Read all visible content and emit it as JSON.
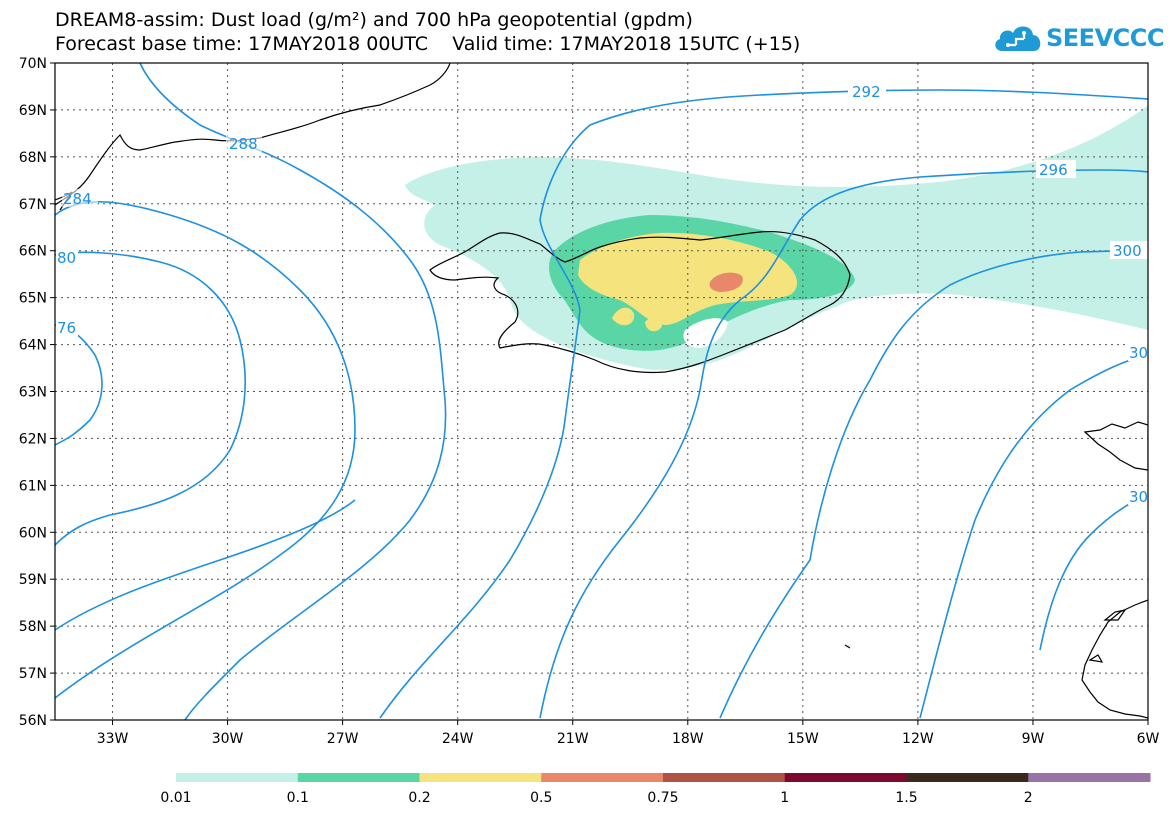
{
  "title": {
    "line1": "DREAM8-assim: Dust load (g/m²) and 700 hPa geopotential (gpdm)",
    "line2": "Forecast base time: 17MAY2018 00UTC    Valid time: 17MAY2018 15UTC (+15)"
  },
  "logo": {
    "text": "SEEVCCC",
    "icon": "cloud-icon",
    "color": "#1e9bd7"
  },
  "map": {
    "lat_ticks": [
      "70N",
      "69N",
      "68N",
      "67N",
      "66N",
      "65N",
      "64N",
      "63N",
      "62N",
      "61N",
      "60N",
      "59N",
      "58N",
      "57N",
      "56N"
    ],
    "lon_ticks": [
      "33W",
      "30W",
      "27W",
      "24W",
      "21W",
      "18W",
      "15W",
      "12W",
      "9W",
      "6W"
    ],
    "lat_range": [
      56,
      70
    ],
    "lon_range": [
      -34.5,
      -6
    ],
    "contour_color": "#1e90e0",
    "contour_labels": [
      "292",
      "296",
      "300",
      "288",
      "284",
      "80",
      "76",
      "30",
      "30"
    ],
    "dust_colors": {
      "0.01": "#c4f0e8",
      "0.1": "#5ad6a6",
      "0.2": "#f5e47e",
      "0.5": "#e8876a"
    }
  },
  "colorbar": {
    "colors": [
      "#c4f0e8",
      "#5ad6a6",
      "#f5e47e",
      "#e8876a",
      "#ae5346",
      "#7d0a2e",
      "#3a2a1e",
      "#9a72a8"
    ],
    "labels": [
      "0.01",
      "0.1",
      "0.2",
      "0.5",
      "0.75",
      "1",
      "1.5",
      "2"
    ]
  }
}
